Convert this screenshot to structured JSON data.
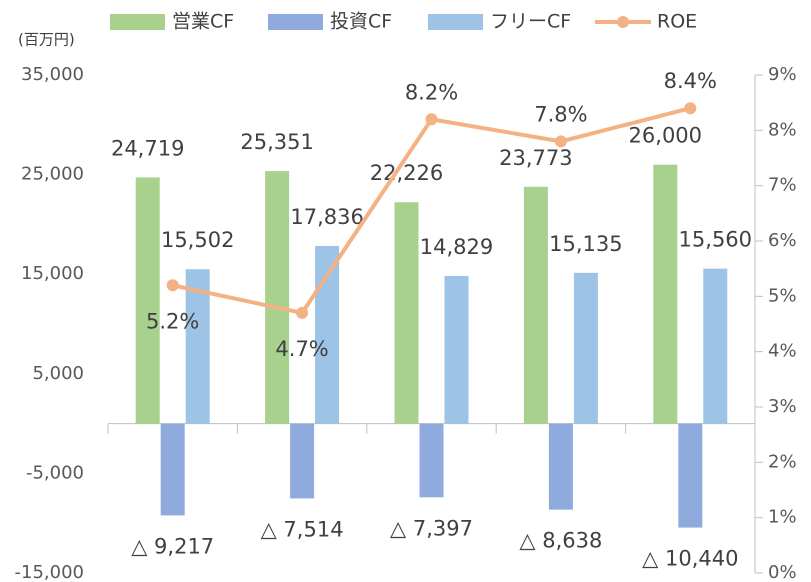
{
  "chart_data": {
    "type": "bar",
    "ylabel": "(百万円)",
    "categories": [
      null,
      null,
      null,
      null,
      null
    ],
    "series": [
      {
        "name": "営業CF",
        "color": "#a9d18e",
        "values": [
          24719,
          25351,
          22226,
          23773,
          26000
        ],
        "value_labels": [
          "24,719",
          "25,351",
          "22,226",
          "23,773",
          "26,000"
        ]
      },
      {
        "name": "投資CF",
        "color": "#8faadc",
        "values": [
          -9217,
          -7514,
          -7397,
          -8638,
          -10440
        ],
        "value_labels": [
          "△ 9,217",
          "△ 7,514",
          "△ 7,397",
          "△ 8,638",
          "△ 10,440"
        ]
      },
      {
        "name": "フリーCF",
        "color": "#9dc3e6",
        "values": [
          15502,
          17836,
          14829,
          15135,
          15560
        ],
        "value_labels": [
          "15,502",
          "17,836",
          "14,829",
          "15,135",
          "15,560"
        ]
      },
      {
        "name": "ROE",
        "color": "#f4b183",
        "type": "line",
        "axis": "y2",
        "values": [
          5.2,
          4.7,
          8.2,
          7.8,
          8.4
        ],
        "value_labels": [
          "5.2%",
          "4.7%",
          "8.2%",
          "7.8%",
          "8.4%"
        ]
      }
    ],
    "ylim": [
      -15000,
      35000
    ],
    "yticks": [
      {
        "value": -15000,
        "label": "-15,000"
      },
      {
        "value": -5000,
        "label": "-5,000"
      },
      {
        "value": 5000,
        "label": "5,000"
      },
      {
        "value": 15000,
        "label": "15,000"
      },
      {
        "value": 25000,
        "label": "25,000"
      },
      {
        "value": 35000,
        "label": "35,000"
      }
    ],
    "y2lim": [
      0,
      9
    ],
    "y2ticks": [
      {
        "value": 0,
        "label": "0%"
      },
      {
        "value": 1,
        "label": "1%"
      },
      {
        "value": 2,
        "label": "2%"
      },
      {
        "value": 3,
        "label": "3%"
      },
      {
        "value": 4,
        "label": "4%"
      },
      {
        "value": 5,
        "label": "5%"
      },
      {
        "value": 6,
        "label": "6%"
      },
      {
        "value": 7,
        "label": "7%"
      },
      {
        "value": 8,
        "label": "8%"
      },
      {
        "value": 9,
        "label": "9%"
      }
    ],
    "legend": "top",
    "grid": false
  }
}
